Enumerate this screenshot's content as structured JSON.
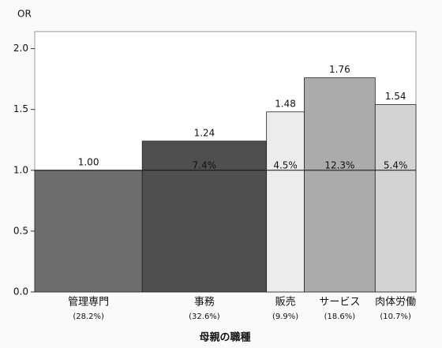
{
  "chart_data": {
    "type": "variwide_bar",
    "y_label": "OR",
    "x_label": "母親の職種",
    "categories": [
      "管理専門",
      "事務",
      "販売",
      "サービス",
      "肉体労働"
    ],
    "shares": [
      28.2,
      32.6,
      9.9,
      18.6,
      10.7
    ],
    "share_labels": [
      "(28.2%)",
      "(32.6%)",
      "(9.9%)",
      "(18.6%)",
      "(10.7%)"
    ],
    "values": [
      1.0,
      1.24,
      1.48,
      1.76,
      1.54
    ],
    "value_labels": [
      "1.00",
      "1.24",
      "1.48",
      "1.76",
      "1.54"
    ],
    "inner_labels": [
      null,
      "7.4%",
      "4.5%",
      "12.3%",
      "5.4%"
    ],
    "colors": [
      "#6e6e6e",
      "#4f4f4f",
      "#ececec",
      "#ababab",
      "#d3d3d3"
    ],
    "reference_line": 1,
    "ylim": [
      0,
      2.14
    ],
    "yticks": [
      {
        "value": 0,
        "label": "0.0"
      },
      {
        "value": 0.5,
        "label": "0.5"
      },
      {
        "value": 1,
        "label": "1.0"
      },
      {
        "value": 1.5,
        "label": "1.5"
      },
      {
        "value": 2,
        "label": "2.0"
      }
    ]
  }
}
